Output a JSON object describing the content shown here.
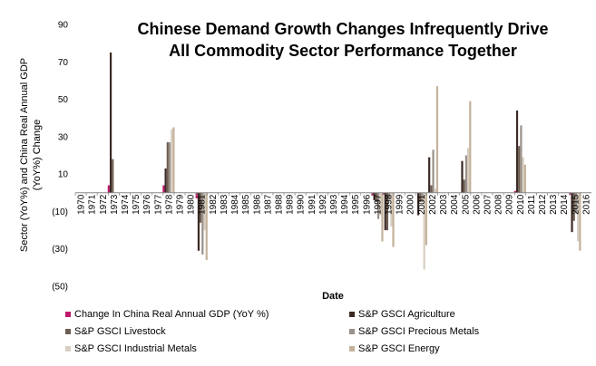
{
  "chart_data": {
    "type": "bar",
    "title": "Chinese Demand Growth Changes Infrequently Drive All Commodity Sector Performance Together",
    "title_lines": [
      "Chinese Demand Growth Changes Infrequently Drive",
      "All Commodity Sector Performance Together"
    ],
    "xlabel": "Date",
    "ylabel": "Sector (YoY%) and China Real Annual GDP (YoY%) Change",
    "ylabel_lines": [
      "Sector (YoY%) and China Real Annual GDP",
      "(YoY%) Change"
    ],
    "ylim": [
      -50,
      90
    ],
    "yticks": [
      90,
      70,
      50,
      30,
      10,
      -10,
      -30,
      -50
    ],
    "ytick_labels": [
      "90",
      "70",
      "50",
      "30",
      "10",
      "(10)",
      "(30)",
      "(50)"
    ],
    "categories": [
      "1970",
      "1971",
      "1972",
      "1973",
      "1974",
      "1975",
      "1976",
      "1977",
      "1978",
      "1979",
      "1980",
      "1981",
      "1982",
      "1983",
      "1984",
      "1985",
      "1986",
      "1987",
      "1988",
      "1989",
      "1990",
      "1991",
      "1992",
      "1993",
      "1994",
      "1995",
      "1996",
      "1997",
      "1998",
      "1999",
      "2000",
      "2001",
      "2002",
      "2003",
      "2004",
      "2005",
      "2006",
      "2007",
      "2008",
      "2009",
      "2010",
      "2011",
      "2012",
      "2013",
      "2014",
      "2015",
      "2016"
    ],
    "series": [
      {
        "name": "Change In China Real Annual GDP (YoY %)",
        "color": "#c0186b",
        "points": [
          {
            "x": "1973",
            "y": 4
          },
          {
            "x": "1978",
            "y": 4
          },
          {
            "x": "1981",
            "y": -3
          },
          {
            "x": "1997",
            "y": -1.5
          },
          {
            "x": "1998",
            "y": -1
          },
          {
            "x": "2010",
            "y": 1
          },
          {
            "x": "2015",
            "y": -1
          }
        ]
      },
      {
        "name": "S&P GSCI Agriculture",
        "color": "#3b2a24",
        "points": [
          {
            "x": "1973",
            "y": 75
          },
          {
            "x": "1978",
            "y": 13
          },
          {
            "x": "1981",
            "y": -31
          },
          {
            "x": "1997",
            "y": -4
          },
          {
            "x": "1998",
            "y": -20
          },
          {
            "x": "2001",
            "y": -12
          },
          {
            "x": "2002",
            "y": 19
          },
          {
            "x": "2005",
            "y": 17
          },
          {
            "x": "2010",
            "y": 44
          },
          {
            "x": "2015",
            "y": -21
          }
        ]
      },
      {
        "name": "S&P GSCI Livestock",
        "color": "#6e5e52",
        "points": [
          {
            "x": "1973",
            "y": 18
          },
          {
            "x": "1978",
            "y": 27
          },
          {
            "x": "1981",
            "y": -16
          },
          {
            "x": "1997",
            "y": -5
          },
          {
            "x": "1998",
            "y": -20
          },
          {
            "x": "2001",
            "y": -5
          },
          {
            "x": "2002",
            "y": 4
          },
          {
            "x": "2005",
            "y": 7
          },
          {
            "x": "2010",
            "y": 25
          },
          {
            "x": "2015",
            "y": -15
          }
        ]
      },
      {
        "name": "S&P GSCI Precious Metals",
        "color": "#9a9088",
        "points": [
          {
            "x": "1978",
            "y": 27
          },
          {
            "x": "1981",
            "y": -33
          },
          {
            "x": "1997",
            "y": -14
          },
          {
            "x": "1998",
            "y": -3
          },
          {
            "x": "2001",
            "y": -5
          },
          {
            "x": "2002",
            "y": 23
          },
          {
            "x": "2005",
            "y": 20
          },
          {
            "x": "2010",
            "y": 36
          },
          {
            "x": "2015",
            "y": -11
          }
        ]
      },
      {
        "name": "S&P GSCI Industrial Metals",
        "color": "#d8cfc4",
        "points": [
          {
            "x": "1978",
            "y": 34
          },
          {
            "x": "1981",
            "y": -20
          },
          {
            "x": "1997",
            "y": -12
          },
          {
            "x": "1998",
            "y": -18
          },
          {
            "x": "2001",
            "y": -41
          },
          {
            "x": "2002",
            "y": 2
          },
          {
            "x": "2005",
            "y": 24
          },
          {
            "x": "2010",
            "y": 19
          },
          {
            "x": "2015",
            "y": -26
          }
        ]
      },
      {
        "name": "S&P GSCI Energy",
        "color": "#c4b29a",
        "points": [
          {
            "x": "1978",
            "y": 35
          },
          {
            "x": "1981",
            "y": -36
          },
          {
            "x": "1997",
            "y": -26
          },
          {
            "x": "1998",
            "y": -29
          },
          {
            "x": "2001",
            "y": -28
          },
          {
            "x": "2002",
            "y": 57
          },
          {
            "x": "2005",
            "y": 49
          },
          {
            "x": "2010",
            "y": 15
          },
          {
            "x": "2015",
            "y": -31
          }
        ]
      }
    ],
    "legend_placement": "bottom",
    "grid": false
  }
}
